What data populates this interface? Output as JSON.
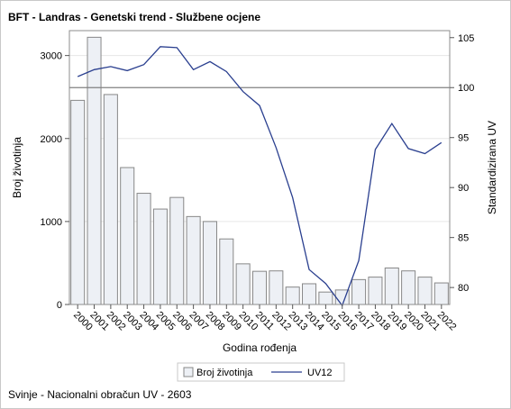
{
  "chart_data": {
    "type": "bar+line",
    "title": "BFT - Landras - Genetski trend - Službene ocjene",
    "xlabel": "Godina rođenja",
    "ylabel_left": "Broj životinja",
    "ylabel_right": "Standardizirana UV",
    "footnote": "Svinje - Nacionalni obračun UV - 2603",
    "categories": [
      "2000",
      "2001",
      "2002",
      "2003",
      "2004",
      "2005",
      "2006",
      "2007",
      "2008",
      "2009",
      "2010",
      "2011",
      "2012",
      "2013",
      "2014",
      "2015",
      "2016",
      "2017",
      "2018",
      "2019",
      "2020",
      "2021",
      "2022"
    ],
    "series": [
      {
        "name": "Broj životinja",
        "type": "bar",
        "axis": "left",
        "values": [
          2460,
          3220,
          2530,
          1650,
          1340,
          1150,
          1290,
          1060,
          1000,
          790,
          490,
          400,
          405,
          210,
          250,
          150,
          175,
          300,
          330,
          440,
          405,
          330,
          260
        ]
      },
      {
        "name": "UV12",
        "type": "line",
        "axis": "right",
        "values": [
          101.1,
          101.8,
          102.1,
          101.7,
          102.3,
          104.1,
          104.0,
          101.8,
          102.6,
          101.6,
          99.6,
          98.2,
          94.0,
          89.0,
          81.8,
          80.4,
          78.2,
          82.7,
          93.8,
          96.4,
          93.9,
          93.4,
          94.5
        ]
      }
    ],
    "ylim_left": [
      0,
      3300
    ],
    "yticks_left": [
      0,
      1000,
      2000,
      3000
    ],
    "ylim_right": [
      78.3,
      105.7
    ],
    "yticks_right": [
      80,
      85,
      90,
      95,
      100,
      105
    ],
    "reference_line_right": 100,
    "grid": "horizontal",
    "legend_position": "bottom-center",
    "colors": {
      "bar_fill": "#edf0f5",
      "bar_stroke": "#878787",
      "line": "#2a3f8f",
      "reference": "#808080",
      "grid": "#e6e6e6"
    }
  }
}
